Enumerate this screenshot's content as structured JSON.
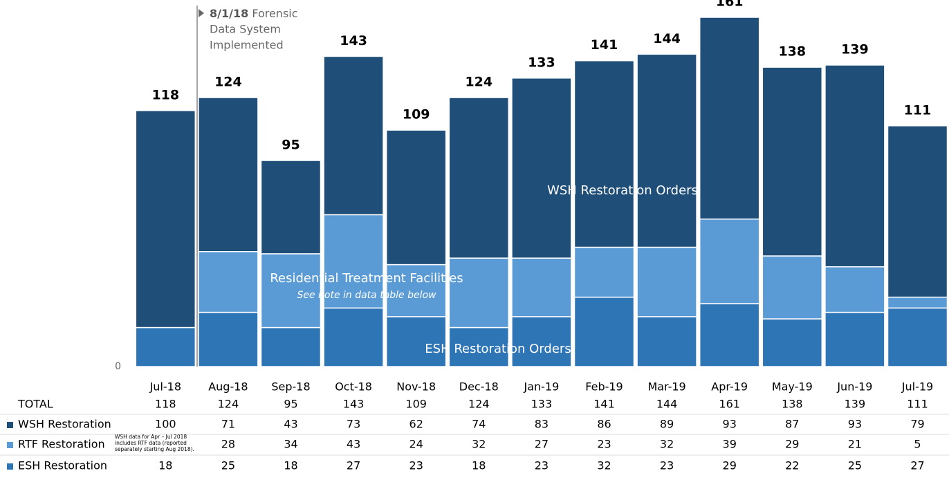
{
  "chart_data": {
    "type": "stacked_bar",
    "categories": [
      "Jul-18",
      "Aug-18",
      "Sep-18",
      "Oct-18",
      "Nov-18",
      "Dec-18",
      "Jan-19",
      "Feb-19",
      "Mar-19",
      "Apr-19",
      "May-19",
      "Jun-19",
      "Jul-19"
    ],
    "totals_label": "TOTAL",
    "totals": [
      118,
      124,
      95,
      143,
      109,
      124,
      133,
      141,
      144,
      161,
      138,
      139,
      111
    ],
    "series": [
      {
        "name": "WSH Restoration",
        "color": "#1f4e79",
        "values": [
          100,
          71,
          43,
          73,
          62,
          74,
          83,
          86,
          89,
          93,
          87,
          93,
          79
        ]
      },
      {
        "name": "RTF Restoration",
        "color": "#5b9bd5",
        "values": [
          null,
          28,
          34,
          43,
          24,
          32,
          27,
          23,
          32,
          39,
          29,
          21,
          5
        ]
      },
      {
        "name": "ESH Restoration",
        "color": "#2e75b6",
        "values": [
          18,
          25,
          18,
          27,
          23,
          18,
          23,
          32,
          23,
          29,
          22,
          25,
          27
        ]
      }
    ],
    "ylim": [
      0,
      161
    ],
    "yticks": [
      0
    ],
    "event": {
      "bold": "8/1/18",
      "lines": [
        "Forensic",
        "Data System",
        "Implemented"
      ]
    },
    "annotations": {
      "wsh": "WSH Restoration Orders",
      "rtf": "Residential Treatment Facilities",
      "rtf_note": "See note in data table below",
      "esh": "ESH Restoration Orders"
    },
    "table_note": [
      "WSH data for Apr – Jul 2018",
      "includes RTF data (reported",
      "separately starting Aug 2018)."
    ]
  }
}
